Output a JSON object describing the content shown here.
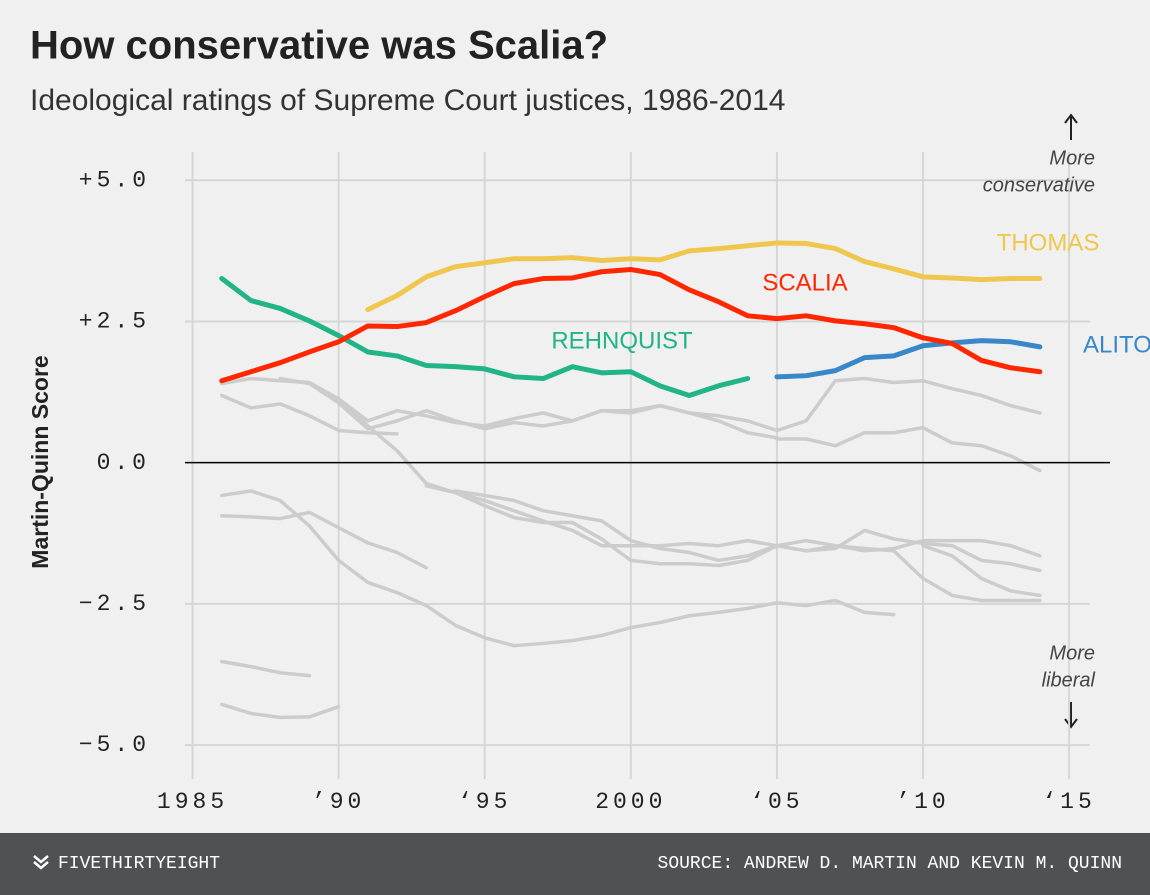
{
  "chart_data": {
    "type": "line",
    "title": "How conservative was Scalia?",
    "subtitle": "Ideological ratings of Supreme Court justices, 1986-2014",
    "y_label": "Martin-Quinn Score",
    "annotations": [
      [
        "More",
        "conservative"
      ],
      [
        "More",
        "liberal"
      ]
    ],
    "footer_left": "FIVETHIRTYEIGHT",
    "footer_right": "SOURCE: ANDREW D. MARTIN AND KEVIN M. QUINN",
    "xlim": [
      1984.4,
      2016.4
    ],
    "ylim": [
      -5.6,
      5.5
    ],
    "xticks": [
      1985,
      {
        "value": 1990,
        "label": "’90"
      },
      {
        "value": 1995,
        "label": "‘95"
      },
      2000,
      {
        "value": 2005,
        "label": "‘05"
      },
      {
        "value": 2010,
        "label": "’10"
      },
      {
        "value": 2015,
        "label": "‘15"
      }
    ],
    "yticks": [
      {
        "value": 5,
        "label": "+5.0"
      },
      {
        "value": 2.5,
        "label": "+2.5"
      },
      {
        "value": 0,
        "label": "0.0"
      },
      {
        "value": -2.5,
        "label": "−2.5"
      },
      {
        "value": -5,
        "label": "−5.0"
      }
    ],
    "grid": true,
    "x": [
      1986,
      1987,
      1988,
      1989,
      1990,
      1991,
      1992,
      1993,
      1994,
      1995,
      1996,
      1997,
      1998,
      1999,
      2000,
      2001,
      2002,
      2003,
      2004,
      2005,
      2006,
      2007,
      2008,
      2009,
      2010,
      2011,
      2012,
      2013,
      2014
    ],
    "series": [
      {
        "color": "#cccccc",
        "values": [
          1.19,
          0.97,
          1.04,
          0.83,
          0.57,
          0.53,
          0.51,
          null,
          null,
          null,
          null,
          null,
          null,
          null,
          null,
          null,
          null,
          null,
          null,
          null,
          null,
          null,
          null,
          null,
          null,
          null,
          null,
          null,
          null
        ]
      },
      {
        "color": "#cccccc",
        "values": [
          1.4,
          1.49,
          1.45,
          1.42,
          1.13,
          0.74,
          0.92,
          0.83,
          0.71,
          0.65,
          0.78,
          0.88,
          0.74,
          0.92,
          0.88,
          1.01,
          0.88,
          0.74,
          0.53,
          0.44,
          null,
          null,
          null,
          null,
          null,
          null,
          null,
          null,
          null
        ]
      },
      {
        "color": "#cccccc",
        "values": [
          null,
          null,
          1.49,
          1.4,
          1.06,
          0.6,
          0.74,
          0.92,
          0.74,
          0.6,
          0.71,
          0.65,
          0.74,
          0.92,
          0.92,
          1.01,
          0.88,
          0.83,
          0.74,
          0.57,
          0.74,
          1.45,
          1.49,
          1.42,
          1.45,
          1.31,
          1.19,
          1.01,
          0.88
        ]
      },
      {
        "color": "#cccccc",
        "values": [
          null,
          null,
          null,
          null,
          null,
          null,
          null,
          null,
          null,
          null,
          null,
          null,
          null,
          null,
          null,
          null,
          null,
          null,
          null,
          0.42,
          0.42,
          0.3,
          0.53,
          0.53,
          0.62,
          0.35,
          0.3,
          0.12,
          -0.14
        ]
      },
      {
        "color": "#cccccc",
        "values": [
          null,
          null,
          null,
          null,
          1.1,
          0.65,
          0.21,
          -0.37,
          -0.53,
          -0.67,
          -0.85,
          -1.03,
          -1.2,
          -1.47,
          -1.47,
          -1.47,
          -1.43,
          -1.47,
          -1.38,
          -1.47,
          -1.56,
          -1.47,
          -1.52,
          -1.56,
          null,
          null,
          null,
          null,
          null
        ]
      },
      {
        "color": "#cccccc",
        "values": [
          null,
          null,
          null,
          null,
          null,
          null,
          null,
          null,
          -0.5,
          -0.58,
          -0.67,
          -0.85,
          -0.94,
          -1.03,
          -1.38,
          -1.52,
          -1.59,
          -1.73,
          -1.65,
          -1.47,
          -1.38,
          -1.47,
          -1.56,
          -1.52,
          -1.38,
          -1.38,
          -1.38,
          -1.47,
          -1.65
        ]
      },
      {
        "color": "#cccccc",
        "values": [
          null,
          null,
          null,
          null,
          null,
          null,
          null,
          -0.41,
          -0.53,
          -0.76,
          -0.97,
          -1.06,
          -1.06,
          -1.35,
          -1.73,
          -1.79,
          -1.79,
          -1.82,
          -1.73,
          -1.47,
          -1.56,
          -1.52,
          -1.2,
          -1.35,
          -1.43,
          -1.47,
          -1.73,
          -1.79,
          -1.91
        ]
      },
      {
        "color": "#cccccc",
        "values": [
          -0.58,
          -0.5,
          -0.67,
          -1.12,
          -1.73,
          -2.12,
          -2.3,
          -2.53,
          -2.88,
          -3.1,
          -3.24,
          -3.2,
          -3.15,
          -3.06,
          -2.92,
          -2.83,
          -2.71,
          -2.65,
          -2.58,
          -2.48,
          -2.53,
          -2.44,
          -2.65,
          -2.69,
          null,
          null,
          null,
          null,
          null
        ]
      },
      {
        "color": "#cccccc",
        "values": [
          -0.94,
          -0.96,
          -0.99,
          -0.88,
          -1.15,
          -1.42,
          -1.59,
          -1.86,
          null,
          null,
          null,
          null,
          null,
          null,
          null,
          null,
          null,
          null,
          null,
          null,
          null,
          null,
          null,
          null,
          null,
          null,
          null,
          null,
          null
        ]
      },
      {
        "color": "#cccccc",
        "values": [
          null,
          null,
          null,
          null,
          null,
          null,
          null,
          null,
          null,
          null,
          null,
          null,
          null,
          null,
          null,
          null,
          null,
          null,
          null,
          null,
          null,
          null,
          null,
          -1.56,
          -2.05,
          -2.35,
          -2.44,
          -2.44,
          -2.44
        ]
      },
      {
        "color": "#cccccc",
        "values": [
          null,
          null,
          null,
          null,
          null,
          null,
          null,
          null,
          null,
          null,
          null,
          null,
          null,
          null,
          null,
          null,
          null,
          null,
          null,
          null,
          null,
          null,
          null,
          null,
          -1.47,
          -1.65,
          -2.05,
          -2.27,
          -2.35
        ]
      },
      {
        "color": "#cccccc",
        "values": [
          -3.52,
          -3.61,
          -3.72,
          -3.77,
          null,
          null,
          null,
          null,
          null,
          null,
          null,
          null,
          null,
          null,
          null,
          null,
          null,
          null,
          null,
          null,
          null,
          null,
          null,
          null,
          null,
          null,
          null,
          null,
          null
        ]
      },
      {
        "color": "#cccccc",
        "values": [
          -4.28,
          -4.44,
          -4.51,
          -4.5,
          -4.32,
          null,
          null,
          null,
          null,
          null,
          null,
          null,
          null,
          null,
          null,
          null,
          null,
          null,
          null,
          null,
          null,
          null,
          null,
          null,
          null,
          null,
          null,
          null,
          null
        ]
      },
      {
        "name": "REHNQUIST",
        "color": "#20b487",
        "values": [
          3.26,
          2.87,
          2.73,
          2.51,
          2.25,
          1.96,
          1.89,
          1.72,
          1.7,
          1.66,
          1.52,
          1.49,
          1.7,
          1.59,
          1.61,
          1.36,
          1.19,
          1.36,
          1.49,
          null,
          null,
          null,
          null,
          null,
          null,
          null,
          null,
          null,
          null
        ]
      },
      {
        "name": "ALITO",
        "color": "#3887c9",
        "values": [
          null,
          null,
          null,
          null,
          null,
          null,
          null,
          null,
          null,
          null,
          null,
          null,
          null,
          null,
          null,
          null,
          null,
          null,
          null,
          1.52,
          1.54,
          1.63,
          1.86,
          1.89,
          2.07,
          2.12,
          2.16,
          2.14,
          2.05
        ]
      },
      {
        "name": "THOMAS",
        "color": "#efc74e",
        "values": [
          null,
          null,
          null,
          null,
          null,
          2.71,
          2.96,
          3.29,
          3.47,
          3.54,
          3.61,
          3.61,
          3.63,
          3.58,
          3.61,
          3.59,
          3.75,
          3.79,
          3.84,
          3.89,
          3.88,
          3.79,
          3.56,
          3.43,
          3.29,
          3.27,
          3.24,
          3.26,
          3.26
        ]
      },
      {
        "name": "SCALIA",
        "color": "#ff2700",
        "values": [
          1.45,
          1.61,
          1.77,
          1.96,
          2.14,
          2.42,
          2.41,
          2.48,
          2.69,
          2.94,
          3.17,
          3.26,
          3.27,
          3.38,
          3.42,
          3.33,
          3.06,
          2.85,
          2.6,
          2.55,
          2.6,
          2.51,
          2.46,
          2.39,
          2.21,
          2.11,
          1.81,
          1.68,
          1.61
        ]
      }
    ]
  }
}
